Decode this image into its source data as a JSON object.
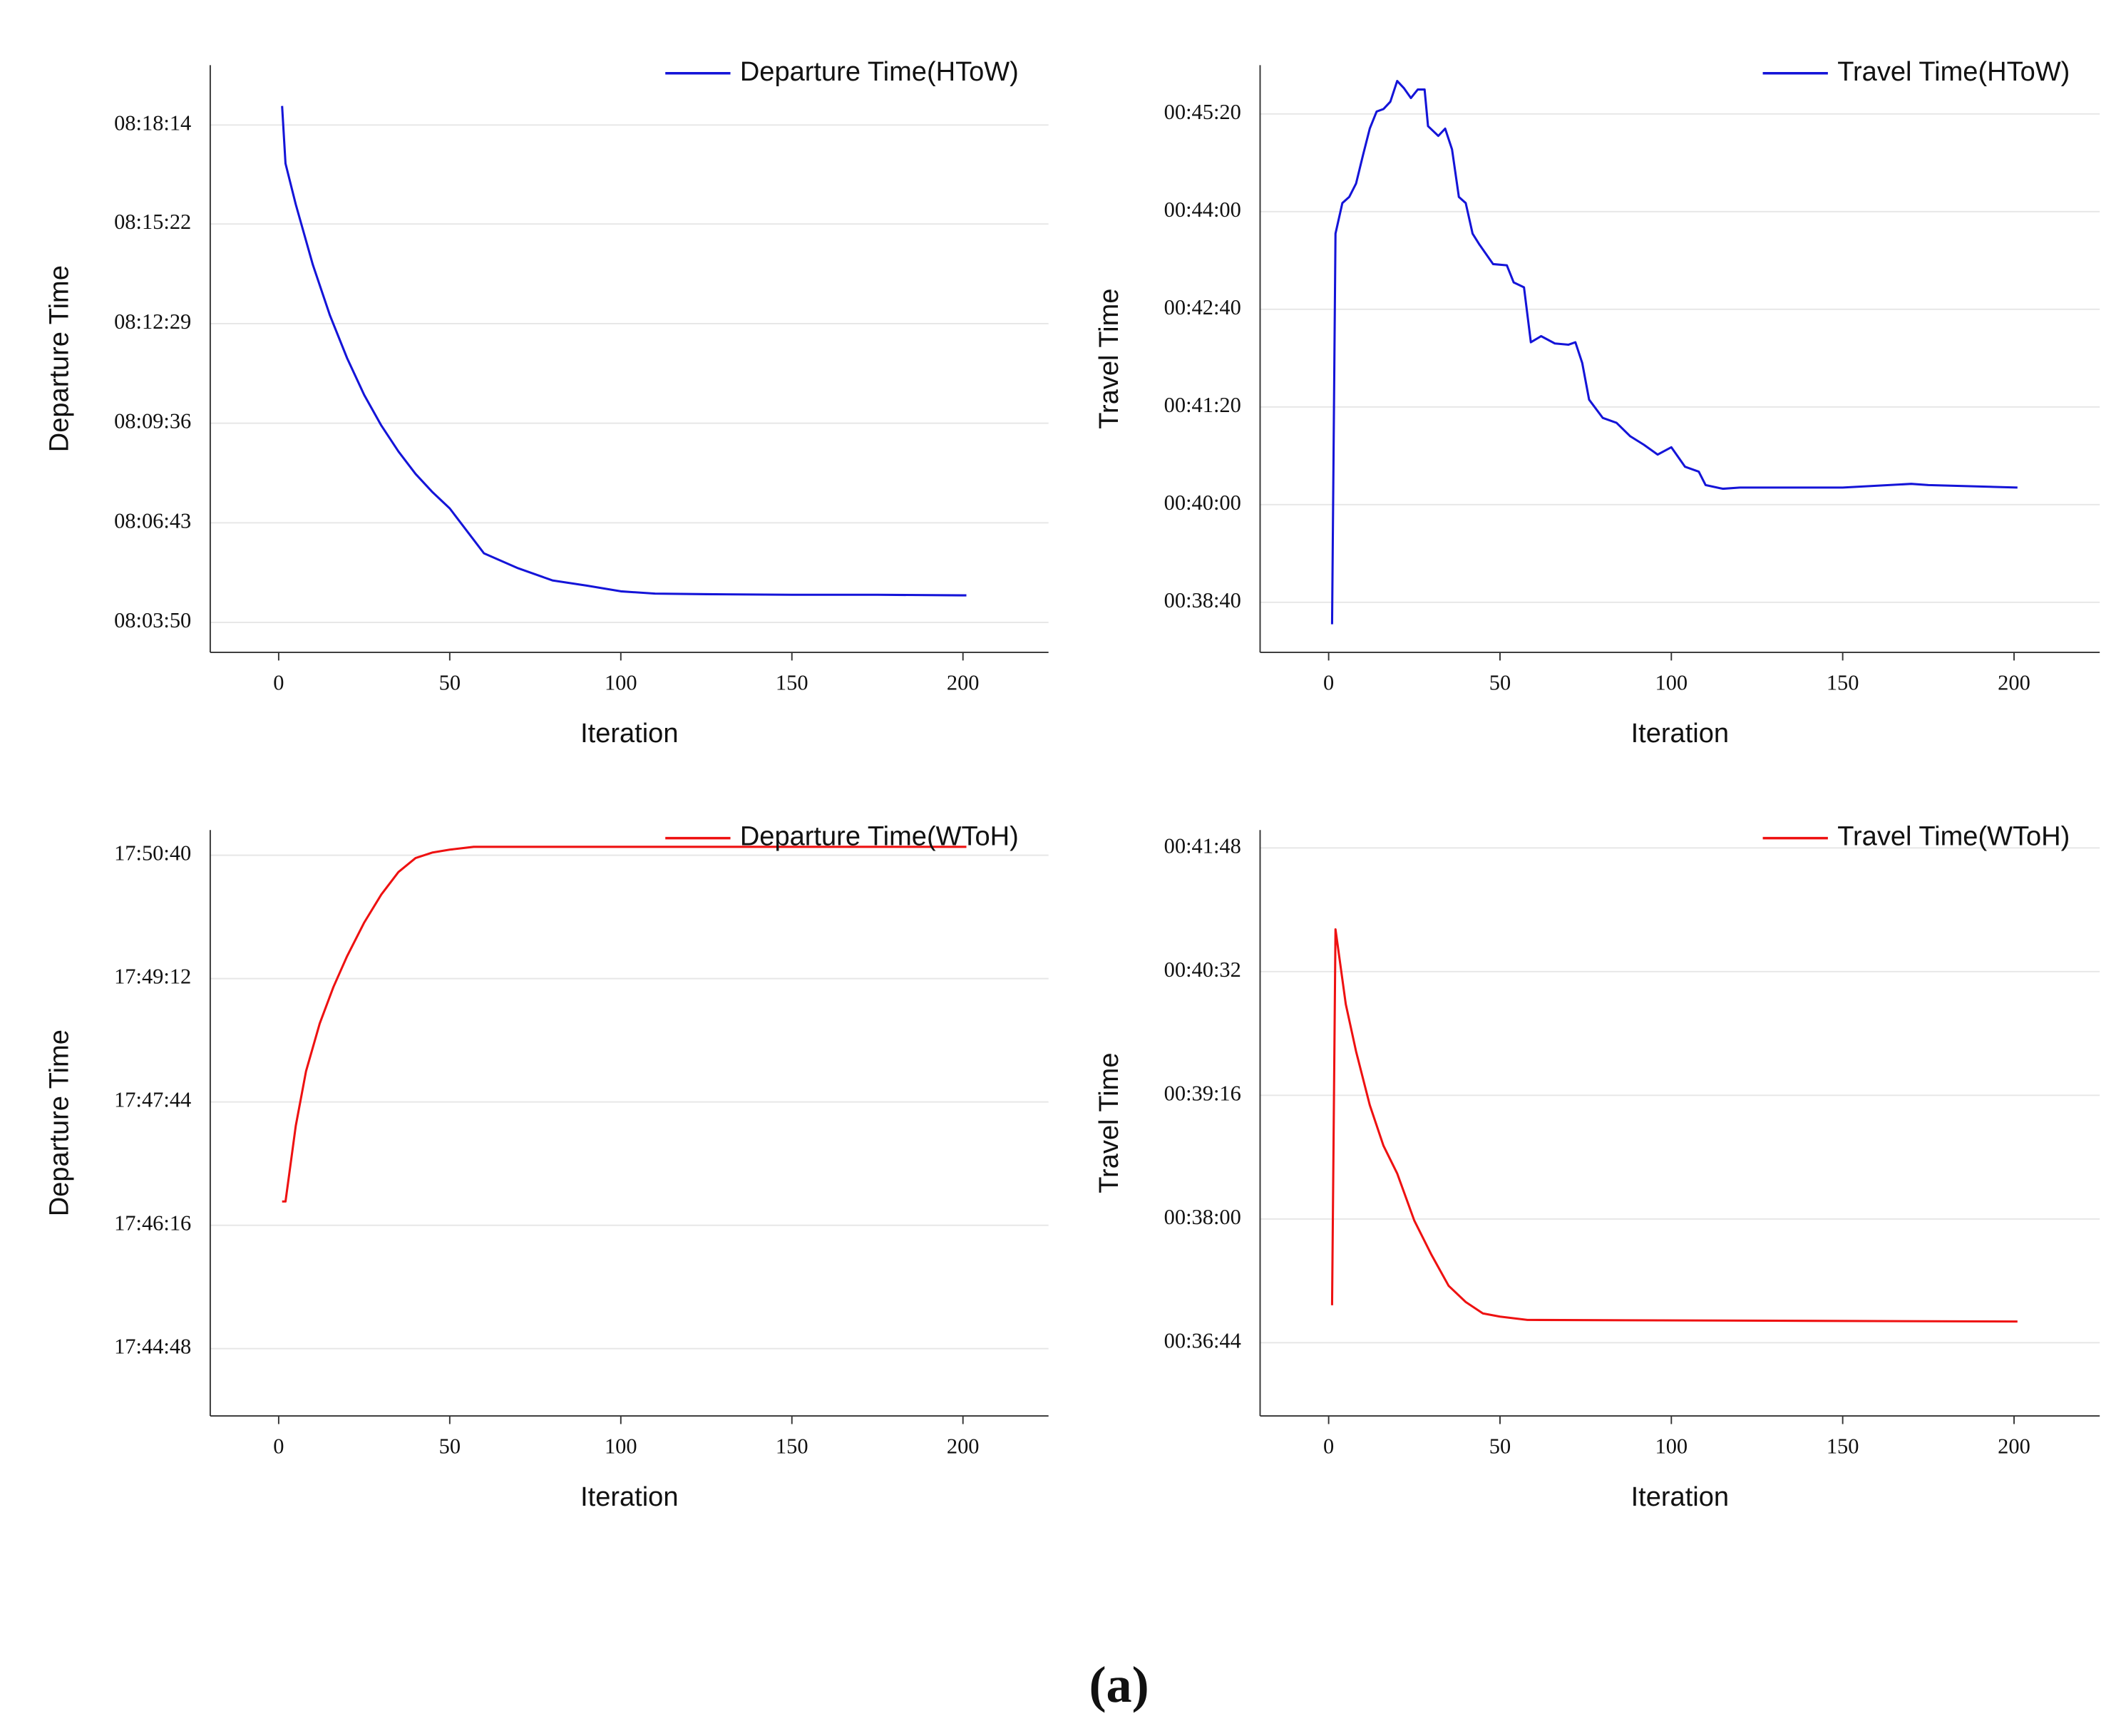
{
  "caption": "(a)",
  "chart_data": [
    {
      "type": "line",
      "xlabel": "Iteration",
      "ylabel": "Departure Time",
      "grid": true,
      "legend": "upper right",
      "xlim": [
        -20,
        225
      ],
      "xticks": [
        0,
        50,
        100,
        150,
        200
      ],
      "ylim": [
        28978,
        29998
      ],
      "yticks": [
        {
          "value": 29030,
          "label": "08:03:50"
        },
        {
          "value": 29203,
          "label": "08:06:43"
        },
        {
          "value": 29376,
          "label": "08:09:36"
        },
        {
          "value": 29549,
          "label": "08:12:29"
        },
        {
          "value": 29722,
          "label": "08:15:22"
        },
        {
          "value": 29894,
          "label": "08:18:14"
        }
      ],
      "x": [
        1,
        2,
        5,
        10,
        15,
        20,
        25,
        30,
        35,
        40,
        45,
        50,
        60,
        70,
        80,
        90,
        100,
        110,
        125,
        150,
        175,
        200,
        201
      ],
      "series": [
        {
          "name": "Departure Time(HToW)",
          "color": "#1414d8",
          "values": [
            29927,
            29827,
            29756,
            29651,
            29563,
            29489,
            29425,
            29372,
            29327,
            29288,
            29256,
            29228,
            29150,
            29124,
            29103,
            29094,
            29084,
            29080,
            29079,
            29078,
            29078,
            29077,
            29077
          ]
        }
      ]
    },
    {
      "type": "line",
      "xlabel": "Iteration",
      "ylabel": "Travel Time",
      "grid": true,
      "legend": "upper right",
      "xlim": [
        -20,
        225
      ],
      "xticks": [
        0,
        50,
        100,
        150,
        200
      ],
      "ylim": [
        2279,
        2760
      ],
      "yticks": [
        {
          "value": 2320,
          "label": "00:38:40"
        },
        {
          "value": 2400,
          "label": "00:40:00"
        },
        {
          "value": 2480,
          "label": "00:41:20"
        },
        {
          "value": 2560,
          "label": "00:42:40"
        },
        {
          "value": 2640,
          "label": "00:44:00"
        },
        {
          "value": 2720,
          "label": "00:45:20"
        }
      ],
      "x": [
        1,
        2,
        4,
        6,
        8,
        10,
        12,
        14,
        16,
        18,
        20,
        22,
        24,
        26,
        28,
        29,
        32,
        34,
        36,
        38,
        40,
        42,
        44,
        48,
        52,
        54,
        57,
        59,
        62,
        66,
        70,
        72,
        74,
        76,
        80,
        84,
        88,
        92,
        96,
        100,
        104,
        108,
        110,
        115,
        120,
        140,
        150,
        170,
        175,
        201
      ],
      "series": [
        {
          "name": "Travel Time(HToW)",
          "color": "#1414d8",
          "values": [
            2302,
            2622,
            2647,
            2652,
            2663,
            2686,
            2708,
            2722,
            2724,
            2730,
            2747,
            2741,
            2733,
            2740,
            2740,
            2710,
            2702,
            2708,
            2691,
            2652,
            2647,
            2622,
            2613,
            2597,
            2596,
            2582,
            2578,
            2533,
            2538,
            2532,
            2531,
            2533,
            2516,
            2486,
            2471,
            2467,
            2456,
            2449,
            2441,
            2447,
            2431,
            2427,
            2416,
            2413,
            2414,
            2414,
            2414,
            2417,
            2416,
            2414
          ]
        }
      ]
    },
    {
      "type": "line",
      "xlabel": "Iteration",
      "ylabel": "Departure Time",
      "grid": true,
      "legend": "upper right",
      "xlim": [
        -20,
        225
      ],
      "xticks": [
        0,
        50,
        100,
        150,
        200
      ],
      "ylim": [
        63840,
        64258
      ],
      "yticks": [
        {
          "value": 63888,
          "label": "17:44:48"
        },
        {
          "value": 63976,
          "label": "17:46:16"
        },
        {
          "value": 64064,
          "label": "17:47:44"
        },
        {
          "value": 64152,
          "label": "17:49:12"
        },
        {
          "value": 64240,
          "label": "17:50:40"
        }
      ],
      "x": [
        1,
        2,
        5,
        8,
        12,
        16,
        20,
        25,
        30,
        35,
        40,
        45,
        50,
        57,
        201
      ],
      "series": [
        {
          "name": "Departure Time(WToH)",
          "color": "#ee1111",
          "values": [
            63993,
            63993,
            64047,
            64086,
            64120,
            64146,
            64168,
            64192,
            64212,
            64228,
            64238,
            64242,
            64244,
            64246,
            64246
          ]
        }
      ]
    },
    {
      "type": "line",
      "xlabel": "Iteration",
      "ylabel": "Travel Time",
      "grid": true,
      "legend": "upper right",
      "xlim": [
        -20,
        225
      ],
      "xticks": [
        0,
        50,
        100,
        150,
        200
      ],
      "ylim": [
        2159,
        2519
      ],
      "yticks": [
        {
          "value": 2204,
          "label": "00:36:44"
        },
        {
          "value": 2280,
          "label": "00:38:00"
        },
        {
          "value": 2356,
          "label": "00:39:16"
        },
        {
          "value": 2432,
          "label": "00:40:32"
        },
        {
          "value": 2508,
          "label": "00:41:48"
        }
      ],
      "x": [
        1,
        2,
        5,
        8,
        12,
        16,
        20,
        25,
        30,
        35,
        40,
        45,
        50,
        58,
        201
      ],
      "series": [
        {
          "name": "Travel Time(WToH)",
          "color": "#ee1111",
          "values": [
            2227,
            2458,
            2412,
            2383,
            2350,
            2325,
            2308,
            2279,
            2258,
            2239,
            2229,
            2222,
            2220,
            2218,
            2217
          ]
        }
      ]
    }
  ]
}
